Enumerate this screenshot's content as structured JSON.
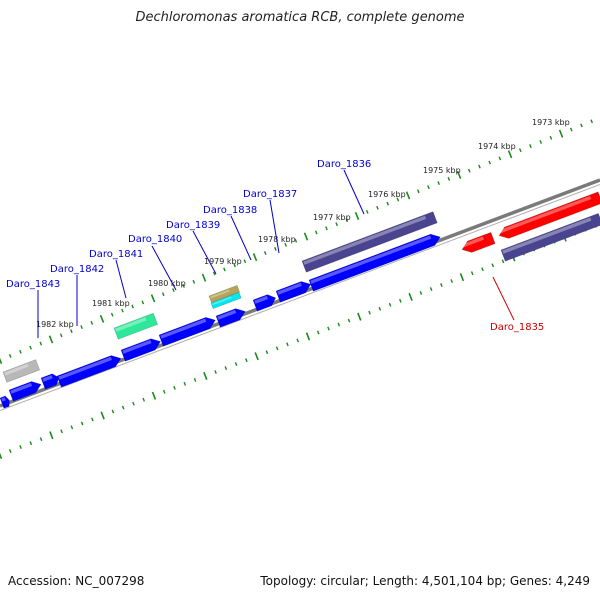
{
  "title": "Dechloromonas aromatica RCB, complete genome",
  "footer": {
    "accession": "Accession: NC_007298",
    "stats": "Topology: circular; Length: 4,501,104 bp; Genes: 4,249"
  },
  "colors": {
    "forward_gene": "#0000ff",
    "reverse_gene": "#ff0000",
    "dark_gene": "#4a4390",
    "green_gene": "#2ee89a",
    "cyan_gene": "#00e8f0",
    "tan_gene": "#b5a45a",
    "gray_gene": "#b8b8b8",
    "backbone": "#808080",
    "tick": "#1a8a1a",
    "label_forward": "#0000cc",
    "label_reverse": "#cc0000"
  },
  "kbp_labels": [
    "1973 kbp",
    "1974 kbp",
    "1975 kbp",
    "1976 kbp",
    "1977 kbp",
    "1978 kbp",
    "1979 kbp",
    "1980 kbp",
    "1981 kbp",
    "1982 kbp"
  ],
  "gene_labels": [
    {
      "id": "d1843",
      "text": "Daro_1843",
      "strand": "forward"
    },
    {
      "id": "d1842",
      "text": "Daro_1842",
      "strand": "forward"
    },
    {
      "id": "d1841",
      "text": "Daro_1841",
      "strand": "forward"
    },
    {
      "id": "d1840",
      "text": "Daro_1840",
      "strand": "forward"
    },
    {
      "id": "d1839",
      "text": "Daro_1839",
      "strand": "forward"
    },
    {
      "id": "d1838",
      "text": "Daro_1838",
      "strand": "forward"
    },
    {
      "id": "d1837",
      "text": "Daro_1837",
      "strand": "forward"
    },
    {
      "id": "d1836",
      "text": "Daro_1836",
      "strand": "forward"
    },
    {
      "id": "d1835",
      "text": "Daro_1835",
      "strand": "reverse"
    }
  ]
}
